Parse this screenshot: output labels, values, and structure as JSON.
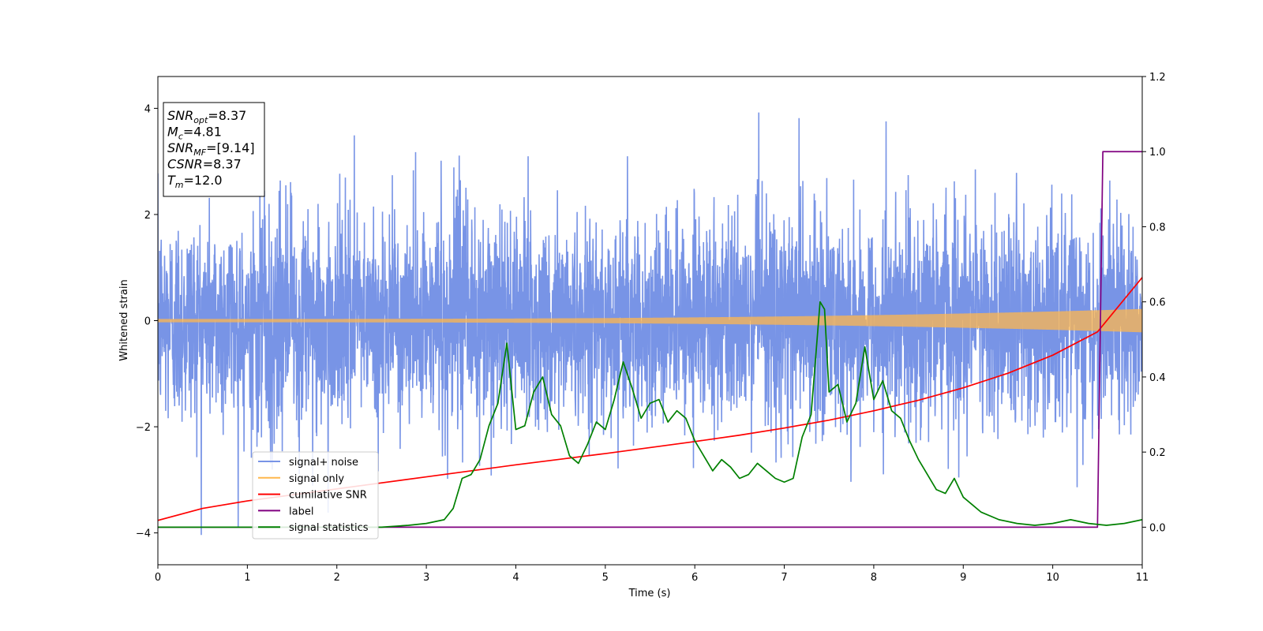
{
  "chart_data": {
    "type": "line",
    "xlabel": "Time (s)",
    "ylabel": "Whitened strain",
    "xlim": [
      0,
      11
    ],
    "ylim": [
      -4.6,
      4.6
    ],
    "ylim_right": [
      -0.1,
      1.2
    ],
    "x_ticks": [
      0,
      1,
      2,
      3,
      4,
      5,
      6,
      7,
      8,
      9,
      10,
      11
    ],
    "y_ticks": [
      -4,
      -2,
      0,
      2,
      4
    ],
    "y_ticks_right": [
      0.0,
      0.2,
      0.4,
      0.6,
      0.8,
      1.0,
      1.2
    ],
    "grid": false,
    "legend_position": "lower-left",
    "annotation": {
      "lines": [
        {
          "sym": "SNR",
          "sub": "opt",
          "rest": "=8.37"
        },
        {
          "sym": "M",
          "sub": "c",
          "rest": "=4.81"
        },
        {
          "sym": "SNR",
          "sub": "MF",
          "rest": "=[9.14]"
        },
        {
          "sym": "CSNR",
          "sub": "",
          "rest": "=8.37"
        },
        {
          "sym": "T",
          "sub": "m",
          "rest": "=12.0"
        }
      ]
    },
    "series": [
      {
        "name": "signal+ noise",
        "color": "#7894e6",
        "axis": "left",
        "style": "noise",
        "sigma": 1.0,
        "max_abs": 4.15
      },
      {
        "name": "signal only",
        "color": "#ffb74d",
        "axis": "left",
        "style": "chirp",
        "amp_start": 0.03,
        "amp_end": 0.22
      },
      {
        "name": "cumilative SNR",
        "color": "#ff0000",
        "axis": "right",
        "x": [
          0,
          0.5,
          1,
          1.5,
          2,
          2.5,
          3,
          3.5,
          4,
          4.5,
          5,
          5.5,
          6,
          6.5,
          7,
          7.5,
          8,
          8.5,
          9,
          9.5,
          10,
          10.5,
          11
        ],
        "values": [
          0.018,
          0.05,
          0.07,
          0.086,
          0.102,
          0.118,
          0.134,
          0.15,
          0.166,
          0.181,
          0.196,
          0.212,
          0.228,
          0.245,
          0.264,
          0.285,
          0.31,
          0.338,
          0.371,
          0.41,
          0.458,
          0.52,
          0.665
        ]
      },
      {
        "name": "label",
        "color": "#800080",
        "axis": "right",
        "x": [
          0,
          10.5,
          10.56,
          11
        ],
        "values": [
          0.0,
          0.0,
          1.0,
          1.0
        ]
      },
      {
        "name": "signal statistics",
        "color": "#008000",
        "axis": "right",
        "x": [
          0,
          0.5,
          1,
          1.5,
          2,
          2.5,
          2.8,
          3,
          3.2,
          3.3,
          3.4,
          3.5,
          3.6,
          3.7,
          3.8,
          3.9,
          4.0,
          4.1,
          4.2,
          4.3,
          4.4,
          4.5,
          4.6,
          4.7,
          4.8,
          4.9,
          5.0,
          5.1,
          5.2,
          5.3,
          5.4,
          5.5,
          5.6,
          5.7,
          5.8,
          5.9,
          6.0,
          6.1,
          6.2,
          6.3,
          6.4,
          6.5,
          6.6,
          6.7,
          6.8,
          6.9,
          7.0,
          7.1,
          7.2,
          7.3,
          7.4,
          7.45,
          7.5,
          7.6,
          7.7,
          7.8,
          7.9,
          8.0,
          8.1,
          8.2,
          8.3,
          8.4,
          8.5,
          8.6,
          8.7,
          8.8,
          8.9,
          9.0,
          9.1,
          9.2,
          9.4,
          9.6,
          9.8,
          10.0,
          10.2,
          10.4,
          10.6,
          10.8,
          11.0
        ],
        "values": [
          0.0,
          0.0,
          0.0,
          0.0,
          0.0,
          0.0,
          0.005,
          0.01,
          0.02,
          0.05,
          0.13,
          0.14,
          0.18,
          0.27,
          0.33,
          0.49,
          0.26,
          0.27,
          0.36,
          0.4,
          0.3,
          0.27,
          0.19,
          0.17,
          0.22,
          0.28,
          0.26,
          0.34,
          0.44,
          0.37,
          0.29,
          0.33,
          0.34,
          0.28,
          0.31,
          0.29,
          0.23,
          0.19,
          0.15,
          0.18,
          0.16,
          0.13,
          0.14,
          0.17,
          0.15,
          0.13,
          0.12,
          0.13,
          0.24,
          0.3,
          0.6,
          0.58,
          0.36,
          0.38,
          0.28,
          0.33,
          0.48,
          0.34,
          0.39,
          0.31,
          0.29,
          0.23,
          0.18,
          0.14,
          0.1,
          0.09,
          0.13,
          0.08,
          0.06,
          0.04,
          0.02,
          0.01,
          0.005,
          0.01,
          0.02,
          0.01,
          0.005,
          0.01,
          0.02
        ]
      }
    ]
  }
}
